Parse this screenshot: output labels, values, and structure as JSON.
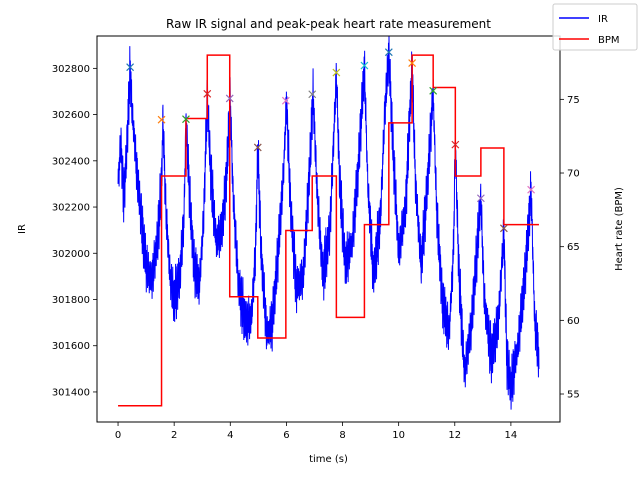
{
  "chart_data": {
    "type": "line",
    "title": "Raw IR signal and peak-peak heart rate measurement",
    "xlabel": "time (s)",
    "ylabel_left": "IR",
    "ylabel_right": "Heart rate (BPM)",
    "xlim": [
      -0.75,
      15.75
    ],
    "ylim_left": [
      301270,
      302940
    ],
    "ylim_right": [
      53.1,
      79.3
    ],
    "x_ticks": [
      0,
      2,
      4,
      6,
      8,
      10,
      12,
      14
    ],
    "y_ticks_left": [
      301400,
      301600,
      301800,
      302000,
      302200,
      302400,
      302600,
      302800
    ],
    "y_ticks_right": [
      55,
      60,
      65,
      70,
      75
    ],
    "grid": false,
    "legend_position": "top-right",
    "series": [
      {
        "name": "IR",
        "axis": "left",
        "color": "#0000ff",
        "anchors": [
          [
            0.0,
            302300
          ],
          [
            0.1,
            302480
          ],
          [
            0.2,
            302230
          ],
          [
            0.3,
            302420
          ],
          [
            0.38,
            302650
          ],
          [
            0.43,
            302800
          ],
          [
            0.5,
            302620
          ],
          [
            0.65,
            302380
          ],
          [
            0.85,
            302120
          ],
          [
            1.0,
            301950
          ],
          [
            1.2,
            301880
          ],
          [
            1.4,
            302050
          ],
          [
            1.55,
            302300
          ],
          [
            1.6,
            302580
          ],
          [
            1.7,
            302200
          ],
          [
            1.85,
            301900
          ],
          [
            2.0,
            301800
          ],
          [
            2.2,
            301900
          ],
          [
            2.35,
            302150
          ],
          [
            2.42,
            302580
          ],
          [
            2.55,
            302250
          ],
          [
            2.7,
            301950
          ],
          [
            2.9,
            301860
          ],
          [
            3.05,
            302150
          ],
          [
            3.18,
            302690
          ],
          [
            3.3,
            302350
          ],
          [
            3.5,
            302050
          ],
          [
            3.7,
            302100
          ],
          [
            3.85,
            302300
          ],
          [
            4.0,
            302670
          ],
          [
            4.1,
            302250
          ],
          [
            4.3,
            301850
          ],
          [
            4.55,
            301700
          ],
          [
            4.75,
            301720
          ],
          [
            4.9,
            302000
          ],
          [
            4.98,
            302460
          ],
          [
            5.1,
            302000
          ],
          [
            5.3,
            301650
          ],
          [
            5.5,
            301700
          ],
          [
            5.7,
            302000
          ],
          [
            5.9,
            302350
          ],
          [
            6.0,
            302660
          ],
          [
            6.15,
            302200
          ],
          [
            6.35,
            301850
          ],
          [
            6.6,
            301900
          ],
          [
            6.8,
            302300
          ],
          [
            6.95,
            302690
          ],
          [
            7.1,
            302250
          ],
          [
            7.3,
            301900
          ],
          [
            7.55,
            302100
          ],
          [
            7.78,
            302780
          ],
          [
            7.9,
            302300
          ],
          [
            8.1,
            301950
          ],
          [
            8.35,
            302050
          ],
          [
            8.55,
            302350
          ],
          [
            8.78,
            302810
          ],
          [
            8.9,
            302300
          ],
          [
            9.1,
            301900
          ],
          [
            9.35,
            302150
          ],
          [
            9.5,
            302600
          ],
          [
            9.65,
            302870
          ],
          [
            9.8,
            302450
          ],
          [
            10.0,
            302000
          ],
          [
            10.25,
            302200
          ],
          [
            10.48,
            302820
          ],
          [
            10.6,
            302300
          ],
          [
            10.8,
            301950
          ],
          [
            11.0,
            302250
          ],
          [
            11.23,
            302700
          ],
          [
            11.35,
            302200
          ],
          [
            11.55,
            301800
          ],
          [
            11.8,
            301650
          ],
          [
            11.95,
            302000
          ],
          [
            12.02,
            302470
          ],
          [
            12.15,
            301900
          ],
          [
            12.35,
            301480
          ],
          [
            12.6,
            301700
          ],
          [
            12.93,
            302240
          ],
          [
            13.05,
            301800
          ],
          [
            13.3,
            301550
          ],
          [
            13.55,
            301700
          ],
          [
            13.75,
            302100
          ],
          [
            13.85,
            301550
          ],
          [
            14.0,
            301420
          ],
          [
            14.25,
            301600
          ],
          [
            14.5,
            301900
          ],
          [
            14.65,
            302150
          ],
          [
            14.72,
            302280
          ],
          [
            14.85,
            301700
          ],
          [
            15.0,
            301550
          ]
        ]
      },
      {
        "name": "BPM",
        "axis": "right",
        "color": "#ff0000",
        "steps": [
          [
            0.0,
            54.2
          ],
          [
            1.55,
            54.2
          ],
          [
            1.55,
            69.8
          ],
          [
            2.42,
            69.8
          ],
          [
            2.42,
            73.7
          ],
          [
            3.18,
            73.7
          ],
          [
            3.18,
            78.0
          ],
          [
            3.98,
            78.0
          ],
          [
            3.98,
            61.6
          ],
          [
            4.98,
            61.6
          ],
          [
            4.98,
            58.8
          ],
          [
            5.98,
            58.8
          ],
          [
            5.98,
            66.1
          ],
          [
            6.92,
            66.1
          ],
          [
            6.92,
            69.8
          ],
          [
            7.78,
            69.8
          ],
          [
            7.78,
            60.2
          ],
          [
            8.78,
            60.2
          ],
          [
            8.78,
            66.5
          ],
          [
            9.65,
            66.5
          ],
          [
            9.65,
            73.4
          ],
          [
            10.48,
            73.4
          ],
          [
            10.48,
            78.0
          ],
          [
            11.23,
            78.0
          ],
          [
            11.23,
            75.8
          ],
          [
            12.02,
            75.8
          ],
          [
            12.02,
            69.8
          ],
          [
            12.93,
            69.8
          ],
          [
            12.93,
            71.7
          ],
          [
            13.75,
            71.7
          ],
          [
            13.75,
            66.5
          ],
          [
            15.0,
            66.5
          ]
        ]
      }
    ],
    "peak_markers": {
      "symbol": "x",
      "points": [
        {
          "x": 0.43,
          "y": 302805,
          "color": "#1f77b4"
        },
        {
          "x": 1.55,
          "y": 302578,
          "color": "#ff7f0e"
        },
        {
          "x": 2.42,
          "y": 302580,
          "color": "#2ca02c"
        },
        {
          "x": 3.18,
          "y": 302690,
          "color": "#d62728"
        },
        {
          "x": 3.98,
          "y": 302670,
          "color": "#9467bd"
        },
        {
          "x": 4.98,
          "y": 302458,
          "color": "#8c564b"
        },
        {
          "x": 5.98,
          "y": 302660,
          "color": "#e377c2"
        },
        {
          "x": 6.92,
          "y": 302688,
          "color": "#7f7f7f"
        },
        {
          "x": 7.78,
          "y": 302782,
          "color": "#bcbd22"
        },
        {
          "x": 8.78,
          "y": 302812,
          "color": "#17becf"
        },
        {
          "x": 9.65,
          "y": 302870,
          "color": "#1f77b4"
        },
        {
          "x": 10.48,
          "y": 302823,
          "color": "#ff7f0e"
        },
        {
          "x": 11.23,
          "y": 302703,
          "color": "#2ca02c"
        },
        {
          "x": 12.02,
          "y": 302470,
          "color": "#d62728"
        },
        {
          "x": 12.93,
          "y": 302238,
          "color": "#9467bd"
        },
        {
          "x": 13.75,
          "y": 302108,
          "color": "#8c564b"
        },
        {
          "x": 14.72,
          "y": 302275,
          "color": "#e377c2"
        }
      ]
    }
  }
}
